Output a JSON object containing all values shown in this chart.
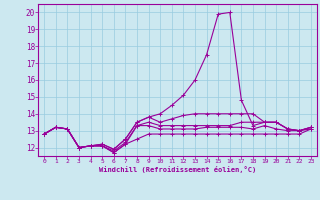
{
  "xlabel": "Windchill (Refroidissement éolien,°C)",
  "bg_color": "#cce8f0",
  "grid_color": "#99cce0",
  "line_color": "#990099",
  "axis_color": "#660066",
  "xlim": [
    -0.5,
    23.5
  ],
  "ylim": [
    11.5,
    20.5
  ],
  "yticks": [
    12,
    13,
    14,
    15,
    16,
    17,
    18,
    19,
    20
  ],
  "xticks": [
    0,
    1,
    2,
    3,
    4,
    5,
    6,
    7,
    8,
    9,
    10,
    11,
    12,
    13,
    14,
    15,
    16,
    17,
    18,
    19,
    20,
    21,
    22,
    23
  ],
  "series": [
    {
      "x": [
        0,
        1,
        2,
        3,
        4,
        5,
        6,
        7,
        8,
        9,
        10,
        11,
        12,
        13,
        14,
        15,
        16,
        17,
        18,
        19,
        20,
        21,
        22,
        23
      ],
      "y": [
        12.8,
        13.2,
        13.1,
        12.0,
        12.1,
        12.1,
        11.7,
        12.2,
        12.5,
        12.8,
        12.8,
        12.8,
        12.8,
        12.8,
        12.8,
        12.8,
        12.8,
        12.8,
        12.8,
        12.8,
        12.8,
        12.8,
        12.8,
        13.1
      ]
    },
    {
      "x": [
        0,
        1,
        2,
        3,
        4,
        5,
        6,
        7,
        8,
        9,
        10,
        11,
        12,
        13,
        14,
        15,
        16,
        17,
        18,
        19,
        20,
        21,
        22,
        23
      ],
      "y": [
        12.8,
        13.2,
        13.1,
        12.0,
        12.1,
        12.1,
        11.7,
        12.2,
        13.3,
        13.3,
        13.1,
        13.1,
        13.1,
        13.1,
        13.2,
        13.2,
        13.2,
        13.2,
        13.1,
        13.3,
        13.1,
        13.0,
        13.0,
        13.1
      ]
    },
    {
      "x": [
        0,
        1,
        2,
        3,
        4,
        5,
        6,
        7,
        8,
        9,
        10,
        11,
        12,
        13,
        14,
        15,
        16,
        17,
        18,
        19,
        20,
        21,
        22,
        23
      ],
      "y": [
        12.8,
        13.2,
        13.1,
        12.0,
        12.1,
        12.1,
        11.8,
        12.3,
        13.3,
        13.5,
        13.3,
        13.3,
        13.3,
        13.3,
        13.3,
        13.3,
        13.3,
        13.5,
        13.5,
        13.5,
        13.5,
        13.1,
        13.0,
        13.2
      ]
    },
    {
      "x": [
        0,
        1,
        2,
        3,
        4,
        5,
        6,
        7,
        8,
        9,
        10,
        11,
        12,
        13,
        14,
        15,
        16,
        17,
        18,
        19,
        20,
        21,
        22,
        23
      ],
      "y": [
        12.8,
        13.2,
        13.1,
        12.0,
        12.1,
        12.2,
        11.9,
        12.5,
        13.5,
        13.8,
        13.5,
        13.7,
        13.9,
        14.0,
        14.0,
        14.0,
        14.0,
        14.0,
        14.0,
        13.5,
        13.5,
        13.1,
        13.0,
        13.2
      ]
    },
    {
      "x": [
        0,
        1,
        2,
        3,
        4,
        5,
        6,
        7,
        8,
        9,
        10,
        11,
        12,
        13,
        14,
        15,
        16,
        17,
        18,
        19,
        20,
        21,
        22,
        23
      ],
      "y": [
        12.8,
        13.2,
        13.1,
        12.0,
        12.1,
        12.2,
        11.9,
        12.5,
        13.5,
        13.8,
        14.0,
        14.5,
        15.1,
        16.0,
        17.5,
        19.9,
        20.0,
        14.8,
        13.3,
        13.5,
        13.5,
        13.1,
        13.0,
        13.2
      ]
    }
  ]
}
